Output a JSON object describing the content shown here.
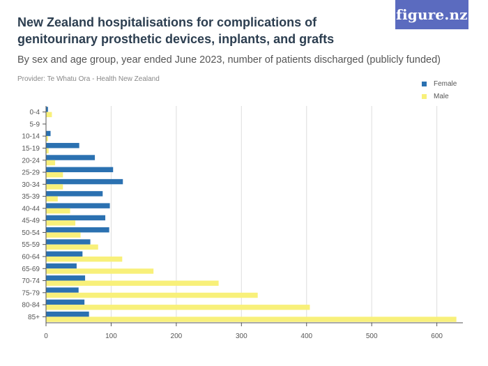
{
  "header": {
    "title": "New Zealand hospitalisations for complications of genitourinary prosthetic devices, inplants, and grafts",
    "subtitle": "By sex and age group, year ended June 2023, number of patients discharged (publicly funded)",
    "provider": "Provider: Te Whatu Ora - Health New Zealand",
    "logo_text": "figure.nz"
  },
  "colors": {
    "female": "#2b71b1",
    "male": "#f8f07a",
    "grid": "#dddddd",
    "axis": "#555555",
    "logo_bg": "#5b6bbf"
  },
  "chart_data": {
    "type": "bar",
    "orientation": "horizontal",
    "categories": [
      "0-4",
      "5-9",
      "10-14",
      "15-19",
      "20-24",
      "25-29",
      "30-34",
      "35-39",
      "40-44",
      "45-49",
      "50-54",
      "55-59",
      "60-64",
      "65-69",
      "70-74",
      "75-79",
      "80-84",
      "85+"
    ],
    "series": [
      {
        "name": "Female",
        "values": [
          3,
          0,
          7,
          51,
          75,
          103,
          118,
          87,
          98,
          91,
          97,
          68,
          56,
          47,
          60,
          50,
          59,
          66
        ]
      },
      {
        "name": "Male",
        "values": [
          9,
          0,
          3,
          4,
          14,
          26,
          26,
          18,
          37,
          45,
          53,
          80,
          117,
          165,
          265,
          325,
          405,
          630
        ]
      }
    ],
    "xlim": [
      0,
      640
    ],
    "xticks": [
      0,
      100,
      200,
      300,
      400,
      500,
      600
    ],
    "grid": true,
    "legend_position": "top-right"
  }
}
